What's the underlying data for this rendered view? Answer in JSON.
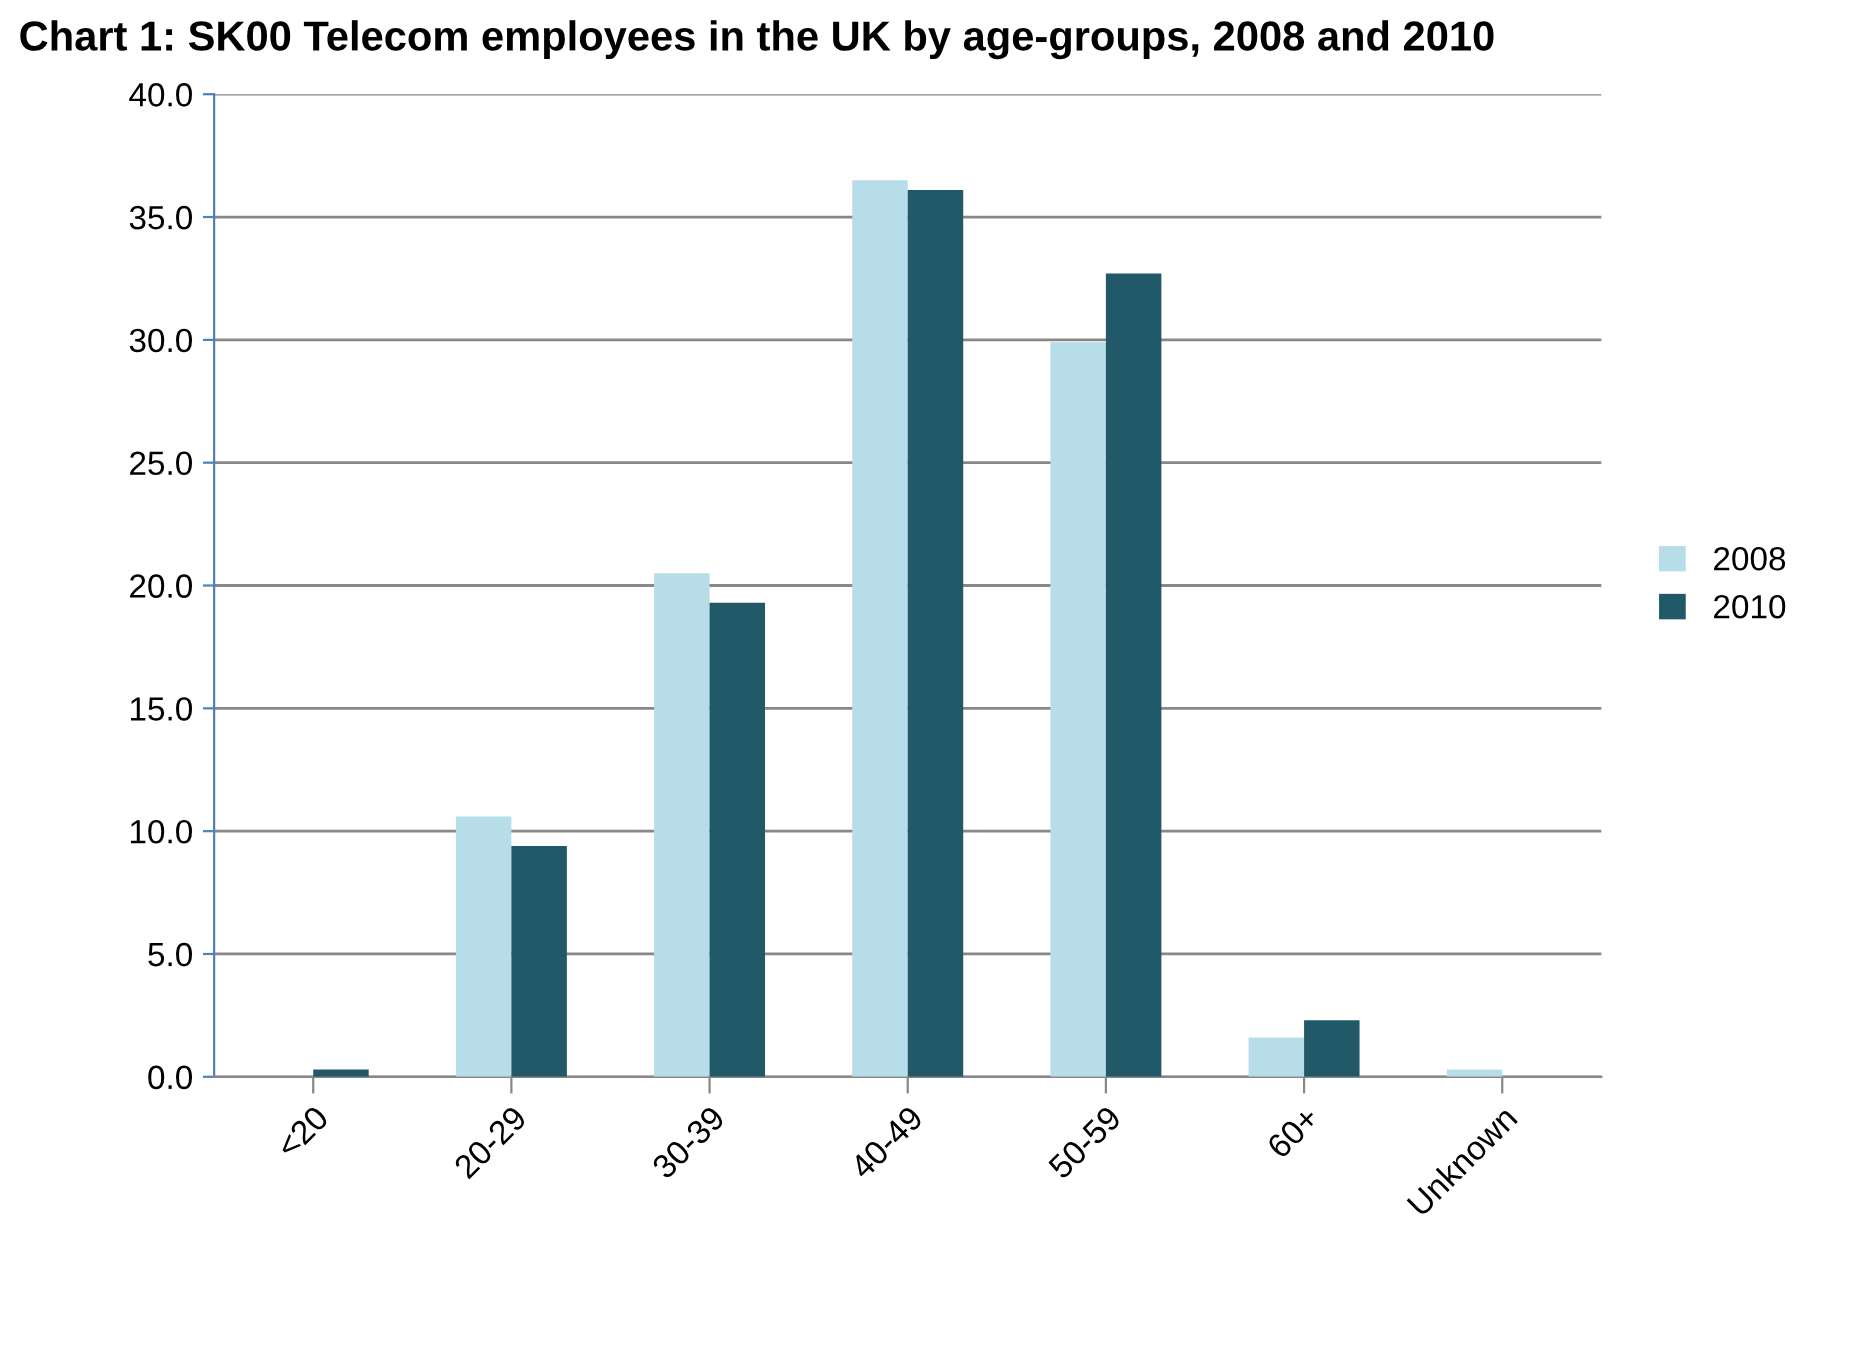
{
  "chart_data": {
    "type": "bar",
    "title": "Chart 1: SK00 Telecom employees in the UK by age-groups, 2008 and 2010",
    "categories": [
      "<20",
      "20-29",
      "30-39",
      "40-49",
      "50-59",
      "60+",
      "Unknown"
    ],
    "series": [
      {
        "name": "2008",
        "color": "#b7dde8",
        "values": [
          0,
          10.6,
          20.5,
          36.5,
          29.9,
          1.6,
          0.3
        ]
      },
      {
        "name": "2010",
        "color": "#215968",
        "values": [
          0.3,
          9.4,
          19.3,
          36.1,
          32.7,
          2.3,
          0
        ]
      }
    ],
    "ylim": [
      0,
      40
    ],
    "yticks": [
      {
        "value": 0,
        "label": "0.0"
      },
      {
        "value": 5,
        "label": "5.0"
      },
      {
        "value": 10,
        "label": "10.0"
      },
      {
        "value": 15,
        "label": "15.0"
      },
      {
        "value": 20,
        "label": "20.0"
      },
      {
        "value": 25,
        "label": "25.0"
      },
      {
        "value": 30,
        "label": "30.0"
      },
      {
        "value": 35,
        "label": "35.0"
      },
      {
        "value": 40,
        "label": "40.0"
      }
    ],
    "grid": "y",
    "legend": "right"
  }
}
